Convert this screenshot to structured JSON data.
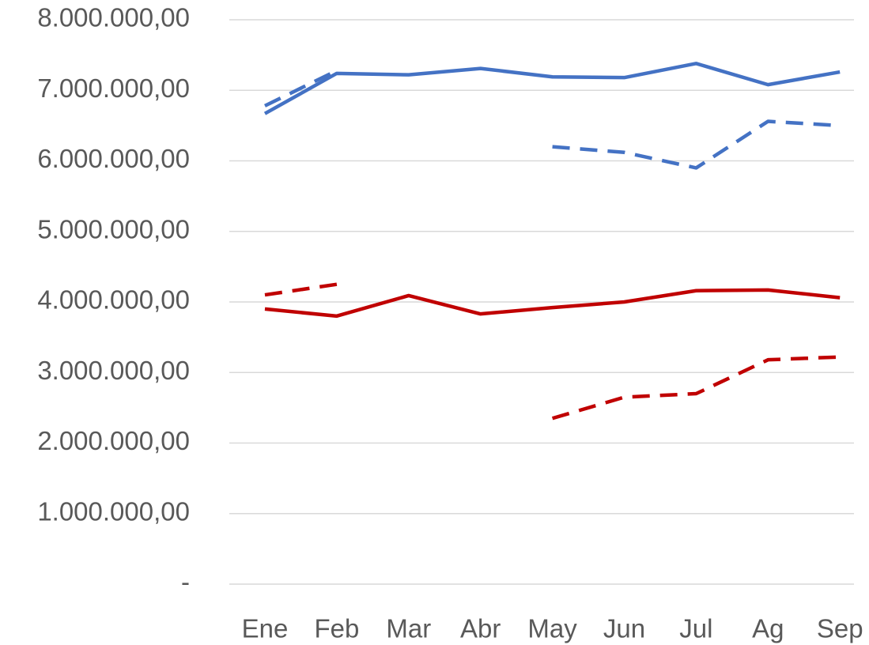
{
  "chart_data": {
    "type": "line",
    "categories": [
      "Ene",
      "Feb",
      "Mar",
      "Abr",
      "May",
      "Jun",
      "Jul",
      "Ag",
      "Sep"
    ],
    "series": [
      {
        "color": "#4472c4",
        "dashed": false,
        "values": [
          6670000,
          7240000,
          7220000,
          7310000,
          7190000,
          7180000,
          7380000,
          7080000,
          7260000
        ]
      },
      {
        "color": "#4472c4",
        "dashed": true,
        "values": [
          6780000,
          7280000,
          null,
          null,
          6200000,
          6120000,
          5900000,
          6560000,
          6500000
        ]
      },
      {
        "color": "#c00000",
        "dashed": false,
        "values": [
          3900000,
          3800000,
          4090000,
          3830000,
          3920000,
          4000000,
          4160000,
          4170000,
          4060000
        ]
      },
      {
        "color": "#c00000",
        "dashed": true,
        "values": [
          4100000,
          4250000,
          null,
          null,
          2350000,
          2650000,
          2700000,
          3180000,
          3220000
        ]
      }
    ],
    "ylim": [
      0,
      8000000
    ],
    "yticks": [
      {
        "value": 0,
        "label": "-"
      },
      {
        "value": 1000000,
        "label": "1.000.000,00"
      },
      {
        "value": 2000000,
        "label": "2.000.000,00"
      },
      {
        "value": 3000000,
        "label": "3.000.000,00"
      },
      {
        "value": 4000000,
        "label": "4.000.000,00"
      },
      {
        "value": 5000000,
        "label": "5.000.000,00"
      },
      {
        "value": 6000000,
        "label": "6.000.000,00"
      },
      {
        "value": 7000000,
        "label": "7.000.000,00"
      },
      {
        "value": 8000000,
        "label": "8.000.000,00"
      }
    ],
    "grid": true
  }
}
